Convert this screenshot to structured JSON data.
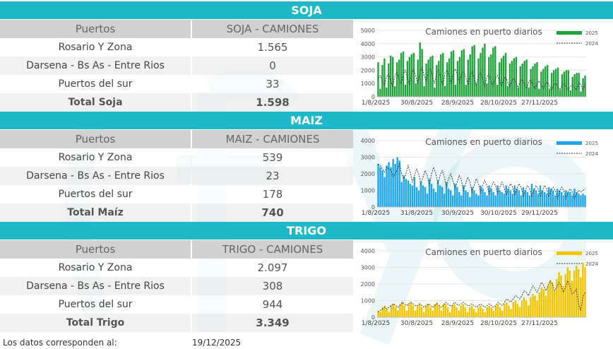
{
  "sections": [
    {
      "title": "SOJA",
      "col1": "Puertos",
      "col2": "SOJA - CAMIONES",
      "rows": [
        {
          "port": "Rosario Y Zona",
          "value": "1.565"
        },
        {
          "port": "Darsena - Bs As - Entre Rios",
          "value": "0"
        },
        {
          "port": "Puertos del sur",
          "value": "33"
        }
      ],
      "total_label": "Total Soja",
      "total_value": "1.598"
    },
    {
      "title": "MAIZ",
      "col1": "Puertos",
      "col2": "MAIZ - CAMIONES",
      "rows": [
        {
          "port": "Rosario Y Zona",
          "value": "539"
        },
        {
          "port": "Darsena - Bs As - Entre Rios",
          "value": "23"
        },
        {
          "port": "Puertos del sur",
          "value": "178"
        }
      ],
      "total_label": "Total Maíz",
      "total_value": "740"
    },
    {
      "title": "TRIGO",
      "col1": "Puertos",
      "col2": "TRIGO - CAMIONES",
      "rows": [
        {
          "port": "Rosario Y Zona",
          "value": "2.097"
        },
        {
          "port": "Darsena - Bs As - Entre Rios",
          "value": "308"
        },
        {
          "port": "Puertos del sur",
          "value": "944"
        }
      ],
      "total_label": "Total Trigo",
      "total_value": "3.349"
    }
  ],
  "footer": {
    "label": "Los datos corresponden al:",
    "date": "19/12/2025"
  },
  "chart_data": [
    {
      "type": "bar",
      "title": "Camiones en puerto diarios",
      "series": [
        {
          "name": "2025",
          "color": "#1fa23a",
          "values": [
            2600,
            600,
            2400,
            2900,
            700,
            2500,
            3100,
            3000,
            800,
            2600,
            2800,
            3300,
            3400,
            900,
            2700,
            3000,
            3200,
            3300,
            1000,
            2800,
            4100,
            3600,
            800,
            2500,
            2800,
            3000,
            3100,
            700,
            2400,
            2700,
            3200,
            3300,
            800,
            2600,
            2900,
            3400,
            3500,
            900,
            2700,
            3000,
            3500,
            3600,
            900,
            2800,
            3200,
            3800,
            3900,
            1000,
            2900,
            3300,
            3700,
            4000,
            1000,
            3000,
            3200,
            3700,
            3800,
            900,
            2600,
            2900,
            3100,
            3300,
            800,
            2500,
            2700,
            2900,
            3000,
            700,
            2300,
            2500,
            2700,
            2800,
            700,
            2100,
            2300,
            2500,
            2600,
            600,
            1900,
            2100,
            2300,
            2400,
            600,
            1800,
            2000,
            2100,
            2200,
            500,
            1700,
            1900,
            2000,
            2000,
            500,
            1500,
            1700,
            1800,
            1800,
            400,
            1400,
            1600
          ]
        },
        {
          "name": "2024",
          "color": "#333333",
          "values": [
            1400,
            1600,
            1100,
            900,
            1500,
            1700,
            1200,
            800,
            1600,
            1900,
            1300,
            1000,
            1700,
            2000,
            1400,
            900,
            1800,
            2100,
            1500,
            1000,
            1900,
            2200,
            1600,
            1100,
            2000,
            2100,
            1500,
            1000,
            1900,
            2000,
            1400,
            900,
            1800,
            2000,
            1500,
            1000,
            1900,
            2100,
            1600,
            1100,
            1800,
            1900,
            1400,
            900,
            1700,
            1900,
            1300,
            900,
            1600,
            1800,
            1300,
            800,
            1500,
            1700,
            1200,
            800,
            1400,
            1600,
            1200,
            800,
            1300,
            1500,
            1100,
            700,
            1200,
            1400,
            1000,
            700,
            1200,
            1300,
            900,
            600,
            1100,
            1300,
            900,
            600,
            1000,
            1200,
            900,
            600,
            1000,
            1100,
            800,
            500,
            900,
            1000,
            800,
            500,
            900,
            1000,
            700,
            500,
            800,
            900,
            700,
            500,
            1100,
            900,
            400,
            1100
          ]
        }
      ],
      "x_tick_labels": [
        "1/8/2025",
        "30/8/2025",
        "28/9/2025",
        "28/10/2025",
        "27/11/2025"
      ],
      "y_ticks": [
        0,
        1000,
        2000,
        3000,
        4000,
        5000
      ],
      "ylim": [
        0,
        5000
      ],
      "legend_position": "top-right"
    },
    {
      "type": "bar",
      "title": "Camiones en puerto diarios",
      "series": [
        {
          "name": "2025",
          "color": "#1fa6e8",
          "values": [
            2600,
            2400,
            2200,
            1800,
            2500,
            2700,
            2400,
            2900,
            2600,
            3000,
            2800,
            1500,
            1900,
            1700,
            1600,
            1400,
            1300,
            1800,
            1200,
            1000,
            1500,
            1300,
            1200,
            800,
            1700,
            1400,
            1100,
            900,
            1600,
            1300,
            1200,
            800,
            1500,
            1100,
            1000,
            700,
            1400,
            1200,
            900,
            700,
            1300,
            1000,
            900,
            600,
            1200,
            1000,
            800,
            700,
            1300,
            1100,
            900,
            700,
            1300,
            1100,
            900,
            700,
            1300,
            1000,
            900,
            800,
            1300,
            1100,
            1000,
            800,
            1300,
            1100,
            1000,
            700,
            1200,
            1000,
            900,
            700,
            1400,
            1100,
            1000,
            800,
            1300,
            1000,
            900,
            800,
            1200,
            1100,
            1000,
            700,
            1100,
            1000,
            900,
            700,
            1000,
            900,
            900,
            700,
            1100,
            900,
            800,
            700,
            800,
            700
          ]
        },
        {
          "name": "2024",
          "color": "#333333",
          "values": [
            2600,
            2500,
            2300,
            2100,
            2400,
            2300,
            2200,
            1800,
            2000,
            2300,
            2600,
            2000,
            1700,
            2000,
            2500,
            2100,
            1500,
            1900,
            2300,
            2000,
            1400,
            1800,
            2200,
            1900,
            1300,
            2000,
            2400,
            2000,
            1400,
            1900,
            2200,
            1800,
            1200,
            1700,
            2000,
            1600,
            1100,
            1500,
            1900,
            1600,
            1000,
            1400,
            1800,
            1500,
            900,
            1300,
            1700,
            1400,
            900,
            1300,
            1600,
            1300,
            800,
            1200,
            1500,
            1300,
            800,
            1200,
            1500,
            1200,
            700,
            1100,
            1400,
            1200,
            700,
            1100,
            1400,
            1200,
            600,
            1000,
            1300,
            1100,
            600,
            1000,
            1300,
            1100,
            600,
            1000,
            1300,
            1100,
            600,
            1000,
            1200,
            1000,
            500,
            900,
            1200,
            1000,
            500,
            900,
            1100,
            900,
            500,
            800,
            1000,
            900,
            1000,
            1100
          ]
        }
      ],
      "x_tick_labels": [
        "1/8/2025",
        "31/8/2025",
        "30/9/2025",
        "30/10/2025",
        "29/11/2025"
      ],
      "y_ticks": [
        0,
        1000,
        2000,
        3000,
        4000
      ],
      "ylim": [
        0,
        4000
      ],
      "legend_position": "top-right"
    },
    {
      "type": "bar",
      "title": "Camiones en puerto diarios",
      "series": [
        {
          "name": "2025",
          "color": "#f5c400",
          "values": [
            400,
            300,
            600,
            700,
            500,
            300,
            700,
            800,
            600,
            400,
            800,
            900,
            700,
            400,
            800,
            900,
            700,
            400,
            700,
            800,
            600,
            300,
            700,
            800,
            600,
            400,
            800,
            900,
            700,
            400,
            800,
            800,
            600,
            300,
            700,
            800,
            600,
            400,
            700,
            800,
            600,
            300,
            600,
            700,
            500,
            300,
            600,
            700,
            500,
            300,
            600,
            700,
            600,
            400,
            700,
            800,
            600,
            400,
            800,
            900,
            700,
            500,
            900,
            1000,
            800,
            600,
            1000,
            1200,
            1000,
            700,
            1200,
            1400,
            1300,
            1000,
            1500,
            1800,
            1700,
            1300,
            1900,
            2200,
            2100,
            1600,
            2300,
            2700,
            2500,
            1900,
            2600,
            3000,
            2800,
            2200,
            2800,
            3100,
            2900,
            2400,
            3300,
            3000
          ]
        },
        {
          "name": "2024",
          "color": "#333333",
          "values": [
            300,
            400,
            500,
            600,
            500,
            600,
            700,
            800,
            700,
            600,
            700,
            900,
            800,
            700,
            800,
            900,
            800,
            700,
            700,
            800,
            700,
            600,
            700,
            800,
            700,
            600,
            700,
            800,
            700,
            600,
            700,
            900,
            800,
            700,
            700,
            900,
            800,
            700,
            800,
            900,
            800,
            700,
            700,
            800,
            700,
            600,
            700,
            800,
            700,
            600,
            700,
            800,
            700,
            600,
            700,
            900,
            800,
            700,
            900,
            1100,
            1000,
            900,
            1100,
            1300,
            1200,
            1100,
            1300,
            1600,
            1500,
            1300,
            1600,
            1900,
            1700,
            1500,
            1800,
            2100,
            1900,
            1600,
            1900,
            2200,
            2000,
            1600,
            1800,
            2100,
            1900,
            1500,
            1800,
            2200,
            1900,
            1400,
            1500,
            1700,
            800,
            400,
            1200,
            1500
          ]
        }
      ],
      "x_tick_labels": [
        "1/8/2025",
        "30/8/2025",
        "28/9/2025",
        "28/10/2025",
        "27/11/2025"
      ],
      "y_ticks": [
        0,
        1000,
        2000,
        3000,
        4000
      ],
      "ylim": [
        0,
        4000
      ],
      "legend_position": "top-right"
    }
  ]
}
